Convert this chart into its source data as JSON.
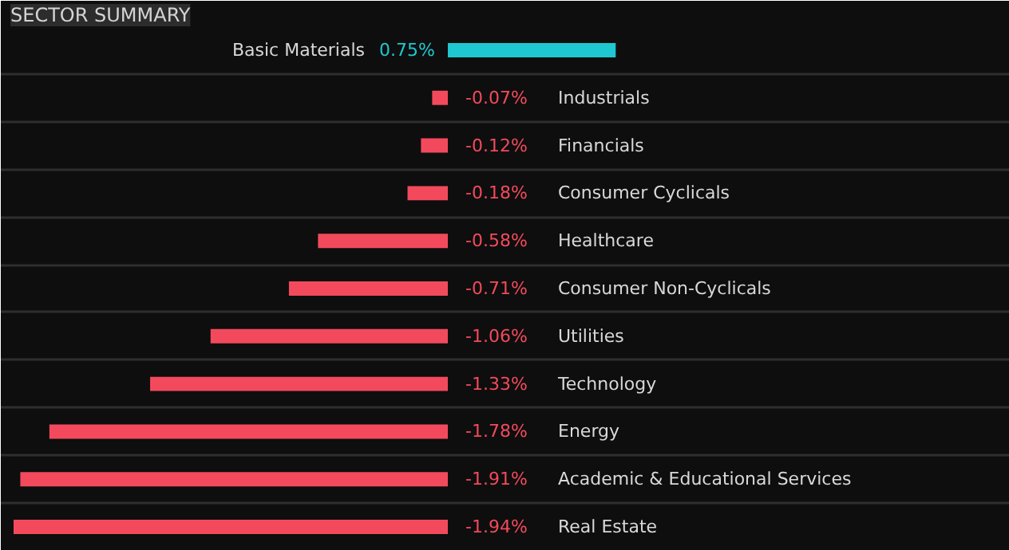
{
  "chart_data": {
    "type": "bar",
    "orientation": "horizontal",
    "title": "SECTOR SUMMARY",
    "categories": [
      "Basic Materials",
      "Industrials",
      "Financials",
      "Consumer Cyclicals",
      "Healthcare",
      "Consumer Non-Cyclicals",
      "Utilities",
      "Technology",
      "Energy",
      "Academic & Educational Services",
      "Real Estate"
    ],
    "values": [
      0.75,
      -0.07,
      -0.12,
      -0.18,
      -0.58,
      -0.71,
      -1.06,
      -1.33,
      -1.78,
      -1.91,
      -1.94
    ],
    "value_labels": [
      "0.75%",
      "-0.07%",
      "-0.12%",
      "-0.18%",
      "-0.58%",
      "-0.71%",
      "-1.06%",
      "-1.33%",
      "-1.78%",
      "-1.91%",
      "-1.94%"
    ],
    "colors": [
      "#1fc8d0",
      "#f24a5c",
      "#f24a5c",
      "#f24a5c",
      "#f24a5c",
      "#f24a5c",
      "#f24a5c",
      "#f24a5c",
      "#f24a5c",
      "#f24a5c",
      "#f24a5c"
    ],
    "grid": "y"
  }
}
